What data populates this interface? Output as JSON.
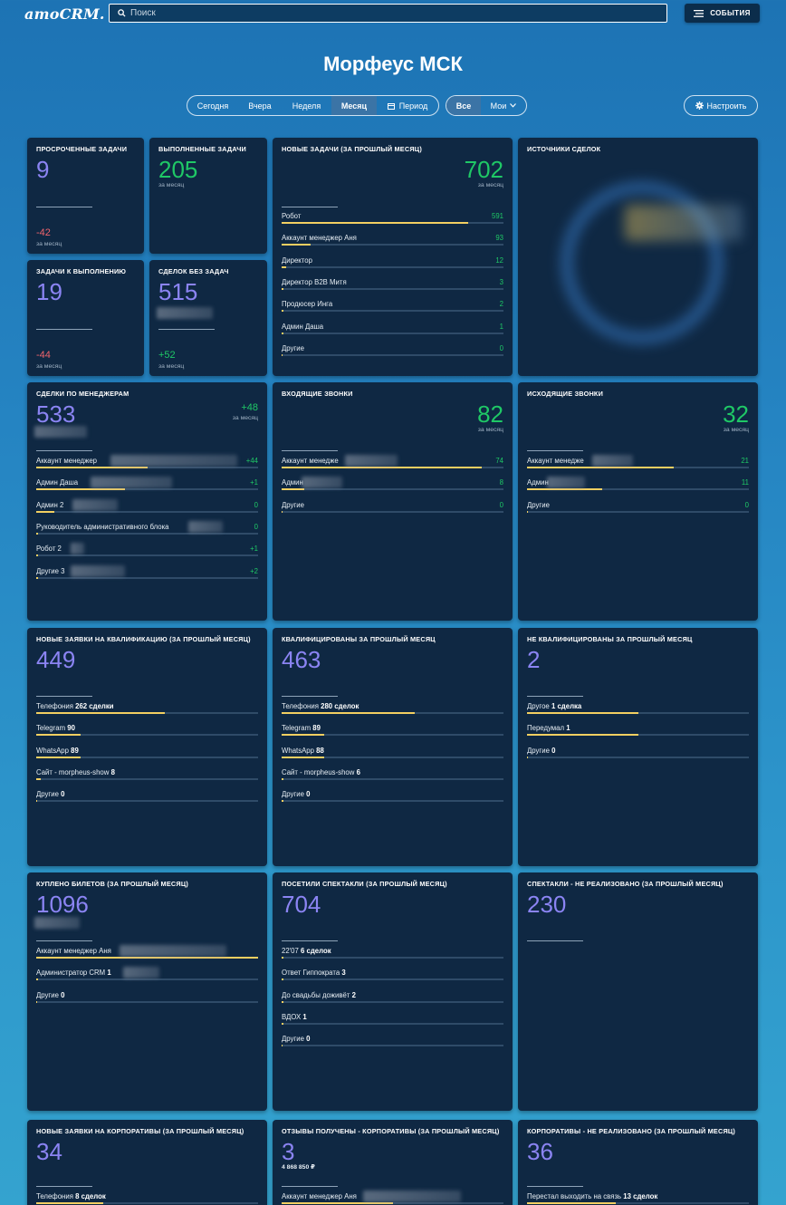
{
  "header": {
    "logo": "amoCRM.",
    "search_placeholder": "Поиск",
    "events_label": "СОБЫТИЯ"
  },
  "page_title": "Морфеус МСК",
  "filters": {
    "period": [
      "Сегодня",
      "Вчера",
      "Неделя",
      "Месяц",
      "Период"
    ],
    "period_active": "Месяц",
    "scope": [
      "Все",
      "Мои"
    ],
    "scope_active": "Все",
    "settings_label": "Настроить"
  },
  "colors": {
    "purple": "#8b84f3",
    "green": "#1fc866",
    "red": "#f0646c",
    "bar": "#f2cf61",
    "card": "#0f2843"
  },
  "cards": {
    "overdue": {
      "title": "Просроченные задачи",
      "value": "9",
      "delta": "-42",
      "delta_sub": "за месяц"
    },
    "done": {
      "title": "Выполненные задачи",
      "value": "205",
      "sub": "за месяц"
    },
    "todo": {
      "title": "Задачи к выполнению",
      "value": "19",
      "delta": "-44",
      "delta_sub": "за месяц"
    },
    "no_tasks": {
      "title": "Сделок без задач",
      "value": "515",
      "delta": "+52",
      "delta_sub": "за месяц"
    },
    "new_tasks": {
      "title": "Новые задачи (за прошлый месяц)",
      "value": "702",
      "sub": "за месяц",
      "rows": [
        {
          "label": "Робот",
          "value": "591",
          "fraction": 0.84
        },
        {
          "label": "Аккаунт менеджер Аня",
          "value": "93",
          "fraction": 0.13
        },
        {
          "label": "Директор",
          "value": "12",
          "fraction": 0.02
        },
        {
          "label": "Директор B2B Митя",
          "value": "3",
          "fraction": 0.01
        },
        {
          "label": "Продюсер Инга",
          "value": "2",
          "fraction": 0.005
        },
        {
          "label": "Админ Даша",
          "value": "1",
          "fraction": 0.003
        },
        {
          "label": "Другие",
          "value": "0",
          "fraction": 0
        }
      ]
    },
    "sources": {
      "title": "Источники сделок"
    },
    "by_managers": {
      "title": "Сделки по менеджерам",
      "value": "533",
      "delta": "+48",
      "delta_sub": "за месяц",
      "rows": [
        {
          "label": "Аккаунт менеджер",
          "value": "+44",
          "fraction": 0.5
        },
        {
          "label": "Админ Даша",
          "value": "+1",
          "fraction": 0.4
        },
        {
          "label": "Админ 2",
          "value": "0",
          "fraction": 0.08
        },
        {
          "label": "Руководитель административного блока",
          "value": "0",
          "fraction": 0.01
        },
        {
          "label": "Робот 2",
          "value": "+1",
          "fraction": 0.005
        },
        {
          "label": "Другие 3",
          "value": "+2",
          "fraction": 0.005
        }
      ]
    },
    "incoming_calls": {
      "title": "Входящие звонки",
      "value": "82",
      "sub": "за месяц",
      "rows": [
        {
          "label": "Аккаунт менедже",
          "value": "74",
          "fraction": 0.9
        },
        {
          "label": "Админ",
          "value": "8",
          "fraction": 0.1
        },
        {
          "label": "Другие",
          "value": "0",
          "fraction": 0
        }
      ]
    },
    "outgoing_calls": {
      "title": "Исходящие звонки",
      "value": "32",
      "sub": "за месяц",
      "rows": [
        {
          "label": "Аккаунт менедже",
          "value": "21",
          "fraction": 0.66
        },
        {
          "label": "Админ",
          "value": "11",
          "fraction": 0.34
        },
        {
          "label": "Другие",
          "value": "0",
          "fraction": 0
        }
      ]
    },
    "qual_new": {
      "title": "Новые заявки на квалификацию (за прошлый месяц)",
      "value": "449",
      "rows": [
        {
          "label": "Телефония",
          "bold": "262 сделки",
          "fraction": 0.58
        },
        {
          "label": "Telegram",
          "bold": "90",
          "fraction": 0.2
        },
        {
          "label": "WhatsApp",
          "bold": "89",
          "fraction": 0.2
        },
        {
          "label": "Сайт - morpheus-show",
          "bold": "8",
          "fraction": 0.02
        },
        {
          "label": "Другие",
          "bold": "0",
          "fraction": 0
        }
      ]
    },
    "qualified": {
      "title": "Квалифицированы за прошлый месяц",
      "value": "463",
      "rows": [
        {
          "label": "Телефония",
          "bold": "280 сделок",
          "fraction": 0.6
        },
        {
          "label": "Telegram",
          "bold": "89",
          "fraction": 0.19
        },
        {
          "label": "WhatsApp",
          "bold": "88",
          "fraction": 0.19
        },
        {
          "label": "Сайт - morpheus-show",
          "bold": "6",
          "fraction": 0.01
        },
        {
          "label": "Другие",
          "bold": "0",
          "fraction": 0.01
        }
      ]
    },
    "not_qualified": {
      "title": "Не квалифицированы за прошлый месяц",
      "value": "2",
      "rows": [
        {
          "label": "Другое",
          "bold": "1 сделка",
          "fraction": 0.5
        },
        {
          "label": "Передумал",
          "bold": "1",
          "fraction": 0.5
        },
        {
          "label": "Другие",
          "bold": "0",
          "fraction": 0
        }
      ]
    },
    "tickets": {
      "title": "Куплено билетов (за прошлый месяц)",
      "value": "1096",
      "rows": [
        {
          "label": "Аккаунт менеджер Аня",
          "bold": "",
          "fraction": 1.0
        },
        {
          "label": "Администратор CRM",
          "bold": "1",
          "fraction": 0.004
        },
        {
          "label": "Другие",
          "bold": "0",
          "fraction": 0
        }
      ]
    },
    "visited": {
      "title": "Посетили спектакли (за прошлый месяц)",
      "value": "704",
      "rows": [
        {
          "label": "22'07",
          "bold": "6 сделок",
          "fraction": 0.01
        },
        {
          "label": "Ответ Гиппократа",
          "bold": "3",
          "fraction": 0.008
        },
        {
          "label": "До свадьбы доживёт",
          "bold": "2",
          "fraction": 0.006
        },
        {
          "label": "ВДОХ",
          "bold": "1",
          "fraction": 0.004
        },
        {
          "label": "Другие",
          "bold": "0",
          "fraction": 0
        }
      ]
    },
    "unsold": {
      "title": "Спектакли - не реализовано (за прошлый месяц)",
      "value": "230"
    },
    "corp_new": {
      "title": "Новые заявки на корпоративы (за прошлый месяц)",
      "value": "34",
      "rows": [
        {
          "label": "Телефония",
          "bold": "8 сделок",
          "fraction": 0.3
        }
      ]
    },
    "corp_reviews": {
      "title": "Отзывы получены - корпоративы (за прошлый месяц)",
      "value": "3",
      "sub": "4 868 850 ₽",
      "rows": [
        {
          "label": "Аккаунт менеджер Аня",
          "bold": "",
          "fraction": 0.5
        }
      ]
    },
    "corp_unsold": {
      "title": "Корпоративы - не реализовано (за прошлый месяц)",
      "value": "36",
      "rows": [
        {
          "label": "Перестал выходить на связь",
          "bold": "13 сделок",
          "fraction": 0.4
        }
      ]
    }
  }
}
